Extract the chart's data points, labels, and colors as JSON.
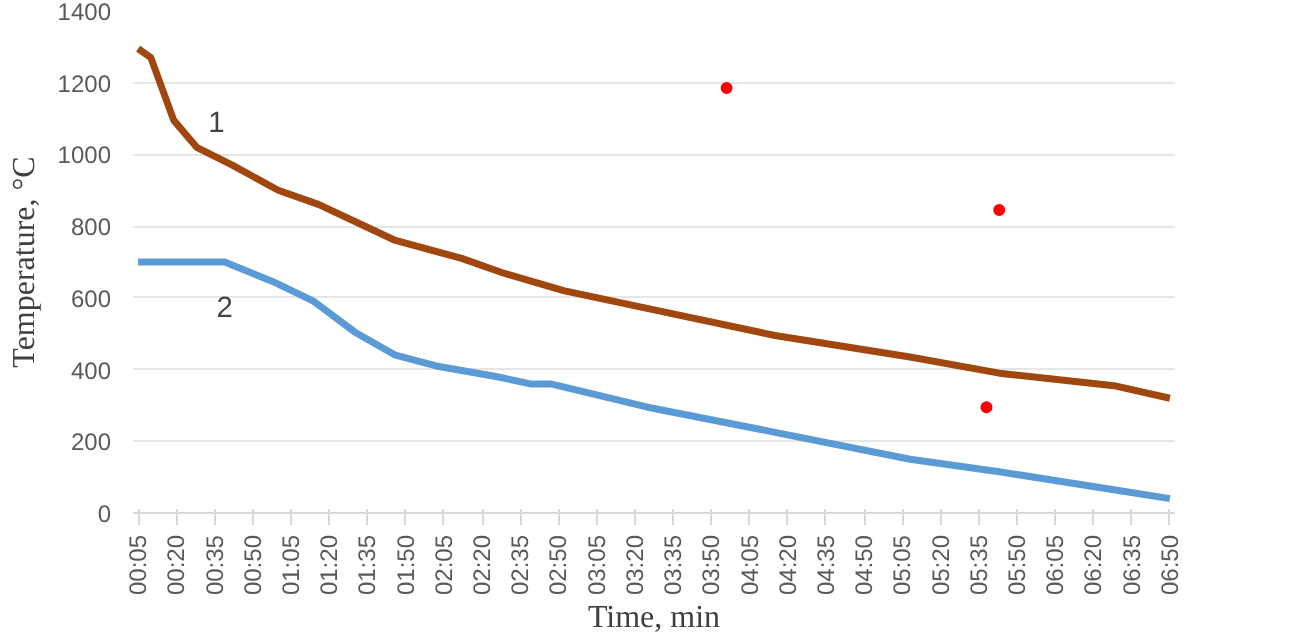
{
  "chart_data": {
    "type": "line",
    "xlabel": "Time, min",
    "ylabel": "Temperature, °C",
    "xlim": [
      3,
      412
    ],
    "ylim": [
      0,
      1400
    ],
    "yticks": [
      0,
      200,
      400,
      600,
      800,
      1000,
      1200,
      1400
    ],
    "xticks": [
      {
        "value": 5,
        "label": "00:05"
      },
      {
        "value": 20,
        "label": "00:20"
      },
      {
        "value": 35,
        "label": "00:35"
      },
      {
        "value": 50,
        "label": "00:50"
      },
      {
        "value": 65,
        "label": "01:05"
      },
      {
        "value": 80,
        "label": "01:20"
      },
      {
        "value": 95,
        "label": "01:35"
      },
      {
        "value": 110,
        "label": "01:50"
      },
      {
        "value": 125,
        "label": "02:05"
      },
      {
        "value": 140,
        "label": "02:20"
      },
      {
        "value": 155,
        "label": "02:35"
      },
      {
        "value": 170,
        "label": "02:50"
      },
      {
        "value": 185,
        "label": "03:05"
      },
      {
        "value": 200,
        "label": "03:20"
      },
      {
        "value": 215,
        "label": "03:35"
      },
      {
        "value": 230,
        "label": "03:50"
      },
      {
        "value": 245,
        "label": "04:05"
      },
      {
        "value": 260,
        "label": "04:20"
      },
      {
        "value": 275,
        "label": "04:35"
      },
      {
        "value": 290,
        "label": "04:50"
      },
      {
        "value": 305,
        "label": "05:05"
      },
      {
        "value": 320,
        "label": "05:20"
      },
      {
        "value": 335,
        "label": "05:35"
      },
      {
        "value": 350,
        "label": "05:50"
      },
      {
        "value": 365,
        "label": "06:05"
      },
      {
        "value": 380,
        "label": "06:20"
      },
      {
        "value": 395,
        "label": "06:35"
      },
      {
        "value": 410,
        "label": "06:50"
      }
    ],
    "grid": "y",
    "line_style": "solid",
    "series": [
      {
        "color": "#a0460f",
        "x": [
          5,
          10,
          19,
          28,
          42,
          60,
          76,
          106,
          132,
          148,
          172,
          202,
          255,
          308,
          343,
          388,
          410
        ],
        "values": [
          1295,
          1270,
          1095,
          1020,
          970,
          900,
          860,
          760,
          710,
          670,
          620,
          575,
          495,
          435,
          390,
          355,
          320
        ]
      },
      {
        "color": "#5b9bd5",
        "x": [
          5,
          39,
          58,
          74,
          90,
          106,
          122,
          146,
          159,
          167,
          205,
          255,
          308,
          343,
          388,
          410
        ],
        "values": [
          700,
          700,
          645,
          590,
          505,
          440,
          410,
          380,
          360,
          360,
          295,
          225,
          150,
          115,
          65,
          40
        ]
      },
      {
        "type": "scatter",
        "marker": "circle",
        "color": "#ff0000",
        "x": [
          236,
          343,
          338
        ],
        "values": [
          1185,
          845,
          295
        ]
      }
    ],
    "annotations": [
      "1",
      "2"
    ]
  }
}
